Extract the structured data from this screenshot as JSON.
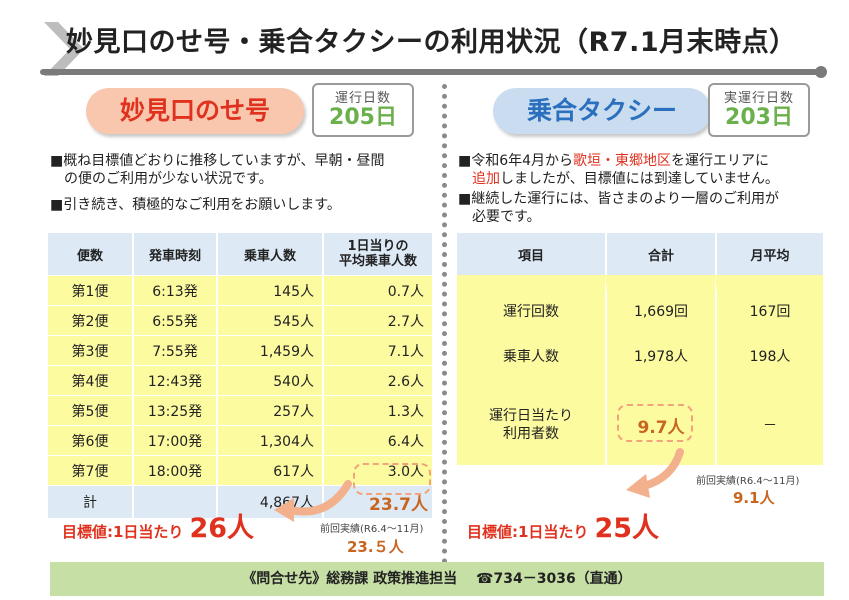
{
  "title": "妙見口のせ号・乗合タクシーの利用状況（R7.1月末時点）",
  "left": {
    "pill": "妙見口のせ号",
    "daybox_label": "運行日数",
    "daybox_value": "205日",
    "bullet1_l1": "■概ね目標値どおりに推移していますが、早朝・昼間",
    "bullet1_l2": "の便のご利用が少ない状況です。",
    "bullet2": "■引き続き、積極的なご利用をお願いします。",
    "headers": [
      "便数",
      "発車時刻",
      "乗車人数",
      "1日当りの",
      "平均乗車人数"
    ],
    "rows": [
      {
        "bin": "第1便",
        "time": "6:13発",
        "riders": "145人",
        "avg": "0.7人"
      },
      {
        "bin": "第2便",
        "time": "6:55発",
        "riders": "545人",
        "avg": "2.7人"
      },
      {
        "bin": "第3便",
        "time": "7:55発",
        "riders": "1,459人",
        "avg": "7.1人"
      },
      {
        "bin": "第4便",
        "time": "12:43発",
        "riders": "540人",
        "avg": "2.6人"
      },
      {
        "bin": "第5便",
        "time": "13:25発",
        "riders": "257人",
        "avg": "1.3人"
      },
      {
        "bin": "第6便",
        "time": "17:00発",
        "riders": "1,304人",
        "avg": "6.4人"
      },
      {
        "bin": "第7便",
        "time": "18:00発",
        "riders": "617人",
        "avg": "3.0人"
      }
    ],
    "total_label": "計",
    "total_riders": "4,867人",
    "total_avg": "23.7人",
    "target_prefix": "目標値:1日当たり",
    "target_value": "26人",
    "prev_label": "前回実績(R6.4～11月)",
    "prev_value": "23.５人"
  },
  "right": {
    "pill": "乗合タクシー",
    "daybox_label": "実運行日数",
    "daybox_value": "203日",
    "bullet1_a": "■令和6年4月から",
    "bullet1_red": "歌垣・東郷地区",
    "bullet1_b": "を運行エリアに",
    "bullet1_red2": "追加",
    "bullet1_c": "しましたが、目標値には到達していません。",
    "bullet2_l1": "■継続した運行には、皆さまのより一層のご利用が",
    "bullet2_l2": "必要です。",
    "headers": [
      "項目",
      "合計",
      "月平均"
    ],
    "row1": {
      "item": "運行回数",
      "total": "1,669回",
      "avg": "167回"
    },
    "row2": {
      "item": "乗車人数",
      "total": "1,978人",
      "avg": "198人"
    },
    "row3": {
      "item_l1": "運行日当たり",
      "item_l2": "利用者数",
      "total": "9.7人",
      "avg": "－"
    },
    "prev_label": "前回実績(R6.4～11月)",
    "prev_value": "9.1人",
    "target_prefix": "目標値:1日当たり",
    "target_value": "25人"
  },
  "footer": "《問合せ先》総務課 政策推進担当　 ☎734－3036（直通）"
}
